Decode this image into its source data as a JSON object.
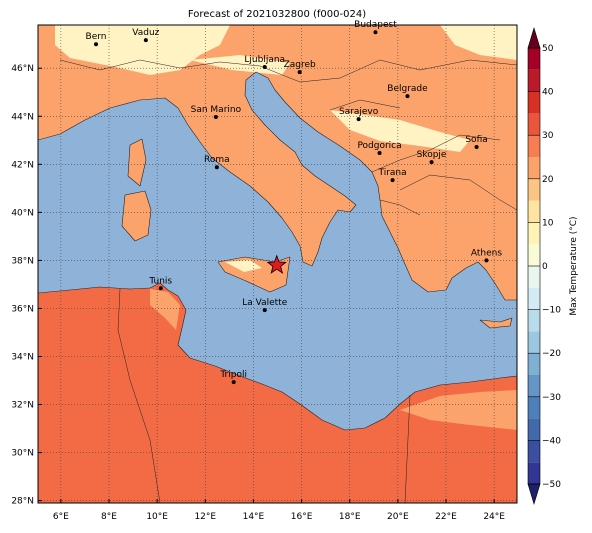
{
  "title": "Forecast of 2021032800 (f000-024)",
  "map": {
    "xlim": [
      5.05,
      24.95
    ],
    "ylim": [
      27.9,
      47.8
    ],
    "xticks": [
      {
        "value": 6,
        "label": "6°E"
      },
      {
        "value": 8,
        "label": "8°E"
      },
      {
        "value": 10,
        "label": "10°E"
      },
      {
        "value": 12,
        "label": "12°E"
      },
      {
        "value": 14,
        "label": "14°E"
      },
      {
        "value": 16,
        "label": "16°E"
      },
      {
        "value": 18,
        "label": "18°E"
      },
      {
        "value": 20,
        "label": "20°E"
      },
      {
        "value": 22,
        "label": "22°E"
      },
      {
        "value": 24,
        "label": "24°E"
      }
    ],
    "yticks": [
      {
        "value": 28,
        "label": "28°N"
      },
      {
        "value": 30,
        "label": "30°N"
      },
      {
        "value": 32,
        "label": "32°N"
      },
      {
        "value": 34,
        "label": "34°N"
      },
      {
        "value": 36,
        "label": "36°N"
      },
      {
        "value": 38,
        "label": "38°N"
      },
      {
        "value": 40,
        "label": "40°N"
      },
      {
        "value": 42,
        "label": "42°N"
      },
      {
        "value": 44,
        "label": "44°N"
      },
      {
        "value": 46,
        "label": "46°N"
      }
    ],
    "grid": true,
    "cities": [
      {
        "name": "Bern",
        "lon": 7.46,
        "lat": 47.0
      },
      {
        "name": "Vaduz",
        "lon": 9.53,
        "lat": 47.17
      },
      {
        "name": "Budapest",
        "lon": 19.07,
        "lat": 47.5
      },
      {
        "name": "Ljubljana",
        "lon": 14.47,
        "lat": 46.05
      },
      {
        "name": "Zagreb",
        "lon": 15.92,
        "lat": 45.84
      },
      {
        "name": "Belgrade",
        "lon": 20.4,
        "lat": 44.84
      },
      {
        "name": "Sarajevo",
        "lon": 18.37,
        "lat": 43.88
      },
      {
        "name": "San Marino",
        "lon": 12.44,
        "lat": 43.97
      },
      {
        "name": "Sofia",
        "lon": 23.27,
        "lat": 42.72
      },
      {
        "name": "Podgorica",
        "lon": 19.24,
        "lat": 42.47
      },
      {
        "name": "Skopje",
        "lon": 21.4,
        "lat": 42.09
      },
      {
        "name": "Roma",
        "lon": 12.48,
        "lat": 41.88
      },
      {
        "name": "Tirana",
        "lon": 19.78,
        "lat": 41.34
      },
      {
        "name": "Athens",
        "lon": 23.68,
        "lat": 38.0
      },
      {
        "name": "Tunis",
        "lon": 10.15,
        "lat": 36.84
      },
      {
        "name": "La Valette",
        "lon": 14.47,
        "lat": 35.93
      },
      {
        "name": "Tripoli",
        "lon": 13.18,
        "lat": 32.93
      }
    ],
    "star": {
      "lon": 14.97,
      "lat": 37.8,
      "color": "#e31a1c"
    }
  },
  "colorbar": {
    "label": "Max Temperature (°C)",
    "lim": [
      -50,
      50
    ],
    "levels": [
      -50,
      -45,
      -40,
      -35,
      -30,
      -25,
      -20,
      -15,
      -10,
      -5,
      0,
      5,
      10,
      15,
      20,
      25,
      30,
      35,
      40,
      45,
      50
    ],
    "colors": [
      "#313695",
      "#3a4fa0",
      "#4169ac",
      "#4f7fba",
      "#6495c6",
      "#7fb0d4",
      "#9bc8e0",
      "#b8dcea",
      "#d3ebf2",
      "#e9f6f0",
      "#f8fbd6",
      "#fff3b8",
      "#fee4a0",
      "#fdc583",
      "#fca36c",
      "#f77e52",
      "#e9563c",
      "#d73027",
      "#bc1a2b",
      "#a50026"
    ],
    "under": "#1f1f6e",
    "over": "#67001f",
    "ticks": [
      {
        "value": -50,
        "label": "−50"
      },
      {
        "value": -40,
        "label": "−40"
      },
      {
        "value": -30,
        "label": "−30"
      },
      {
        "value": -20,
        "label": "−20"
      },
      {
        "value": -10,
        "label": "−10"
      },
      0,
      10,
      20,
      30,
      40,
      50
    ]
  }
}
